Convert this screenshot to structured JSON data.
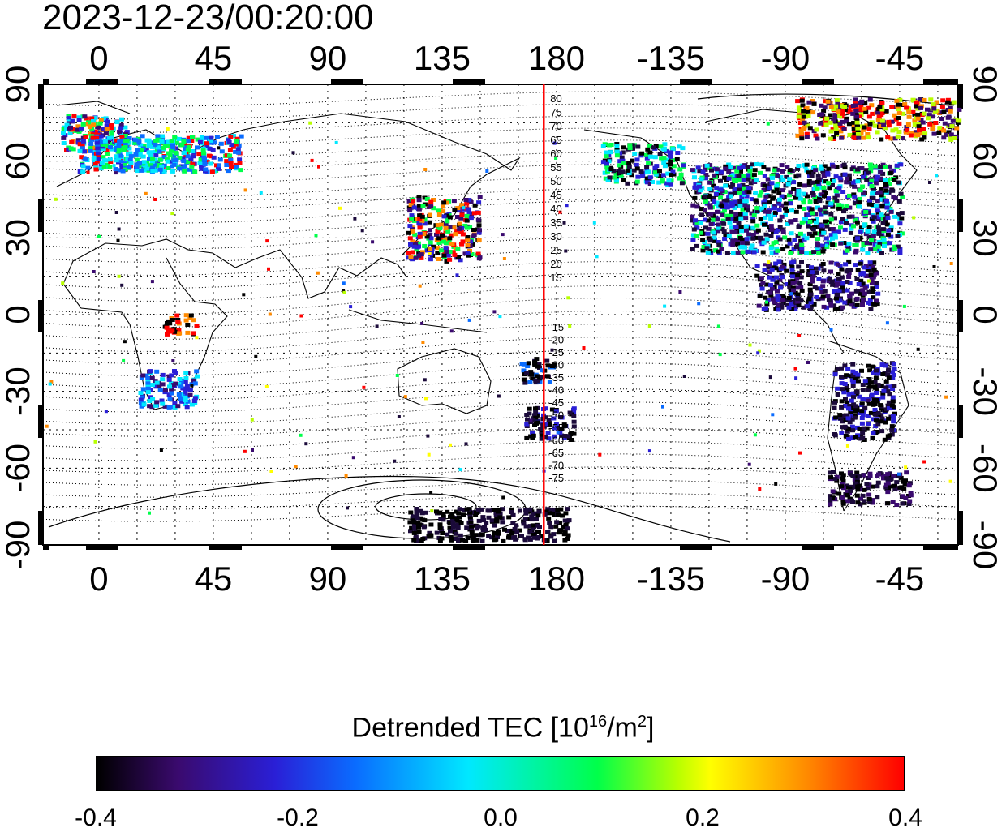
{
  "timestamp": "2023-12-23/00:20:00",
  "map": {
    "top_lon_ticks": [
      "0",
      "45",
      "90",
      "135",
      "180",
      "-135",
      "-90",
      "-45"
    ],
    "bottom_lon_ticks": [
      "0",
      "45",
      "90",
      "135",
      "180",
      "-135",
      "-90",
      "-45"
    ],
    "left_lat_ticks": [
      "90",
      "60",
      "30",
      "0",
      "-30",
      "-60",
      "-90"
    ],
    "right_lat_ticks": [
      "90",
      "60",
      "30",
      "0",
      "-30",
      "-60",
      "-90"
    ],
    "meridian_line_longitude": 175,
    "contour_labels_north": [
      "80",
      "75",
      "70",
      "65",
      "60",
      "55",
      "50",
      "45",
      "40",
      "35",
      "30",
      "25",
      "20",
      "15"
    ],
    "contour_labels_south": [
      "-15",
      "-20",
      "-25",
      "-30",
      "-35",
      "-40",
      "-45",
      "-50",
      "-55",
      "-60",
      "-65",
      "-70",
      "-75"
    ],
    "colors": {
      "meridian_line": "#ff0000",
      "coastline": "#000000",
      "grid": "#000000",
      "contour": "#000000"
    }
  },
  "colorbar": {
    "title_main": "Detrended TEC  [10",
    "title_exp": "16",
    "title_unit": "/m",
    "title_unit_exp": "2",
    "title_close": "]",
    "ticks": [
      "-0.4",
      "-0.2",
      "0.0",
      "0.2",
      "0.4"
    ],
    "range": [
      -0.4,
      0.4
    ]
  }
}
